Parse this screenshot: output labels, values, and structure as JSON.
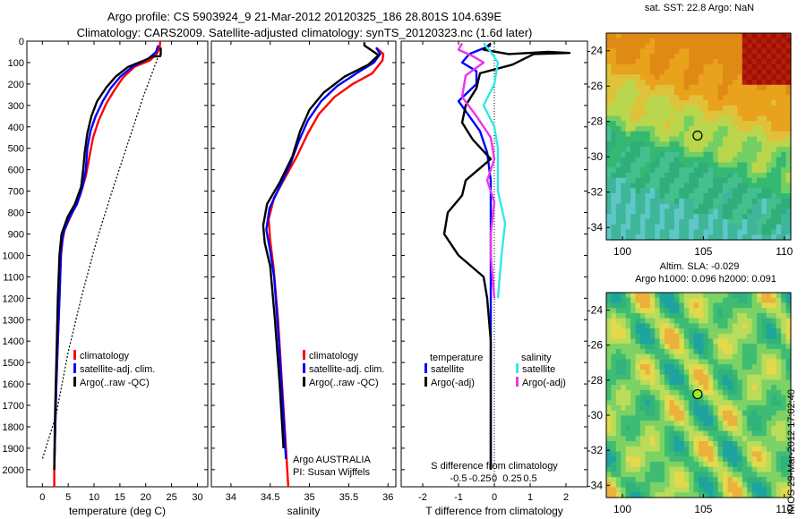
{
  "header": {
    "line1": "Argo profile: CS 5903924_9 21-Mar-2012 20120325_186 28.801S 104.639E",
    "line2": "Climatology: CARS2009. Satellite-adjusted climatology: synTS_20120323.nc (1.6d later)"
  },
  "colors": {
    "climatology": "#ff0000",
    "satellite": "#0000ff",
    "argo": "#000000",
    "sal_satellite": "#33e8e8",
    "sal_argo": "#ee33ee"
  },
  "chart_data": [
    {
      "id": "temperature",
      "type": "line",
      "xlabel": "temperature (deg C)",
      "ylabel": "",
      "xlim": [
        -3,
        32
      ],
      "ylim": [
        2080,
        0
      ],
      "xticks": [
        "0",
        "5",
        "10",
        "15",
        "20",
        "25",
        "30"
      ],
      "xtick_values": [
        0,
        5,
        10,
        15,
        20,
        25,
        30
      ],
      "yticks": [
        "0",
        "100",
        "200",
        "300",
        "400",
        "500",
        "600",
        "700",
        "800",
        "900",
        "1000",
        "1100",
        "1200",
        "1300",
        "1400",
        "1500",
        "1600",
        "1700",
        "1800",
        "1900",
        "2000"
      ],
      "ytick_values": [
        0,
        100,
        200,
        300,
        400,
        500,
        600,
        700,
        800,
        900,
        1000,
        1100,
        1200,
        1300,
        1400,
        1500,
        1600,
        1700,
        1800,
        1900,
        2000
      ],
      "legend": [
        "climatology",
        "satellite-adj. clim.",
        "Argo(..raw -QC)"
      ],
      "series": [
        {
          "name": "climatology",
          "color": "#ff0000",
          "dash": "",
          "points": [
            [
              22.8,
              0
            ],
            [
              22.7,
              30
            ],
            [
              22.1,
              60
            ],
            [
              20.8,
              90
            ],
            [
              17.8,
              120
            ],
            [
              15.6,
              170
            ],
            [
              13.9,
              230
            ],
            [
              12.4,
              290
            ],
            [
              10.9,
              370
            ],
            [
              9.8,
              450
            ],
            [
              9.1,
              540
            ],
            [
              8.4,
              630
            ],
            [
              7.3,
              720
            ],
            [
              5.8,
              800
            ],
            [
              4.3,
              880
            ],
            [
              3.9,
              930
            ],
            [
              3.6,
              1000
            ],
            [
              3.3,
              1200
            ],
            [
              3.0,
              1400
            ],
            [
              2.7,
              1600
            ],
            [
              2.5,
              1800
            ],
            [
              2.3,
              2000
            ],
            [
              2.3,
              2080
            ]
          ]
        },
        {
          "name": "satellite-adj. clim.",
          "color": "#0000ff",
          "dash": "",
          "points": [
            [
              22.4,
              20
            ],
            [
              22.0,
              50
            ],
            [
              20.6,
              80
            ],
            [
              17.4,
              120
            ],
            [
              15.1,
              165
            ],
            [
              13.2,
              220
            ],
            [
              11.7,
              280
            ],
            [
              10.3,
              350
            ],
            [
              9.3,
              420
            ],
            [
              8.7,
              500
            ],
            [
              8.4,
              600
            ],
            [
              7.8,
              680
            ],
            [
              6.7,
              760
            ],
            [
              5.1,
              830
            ],
            [
              4.0,
              900
            ],
            [
              3.6,
              980
            ],
            [
              3.3,
              1200
            ],
            [
              3.0,
              1400
            ],
            [
              2.7,
              1600
            ],
            [
              2.5,
              1800
            ],
            [
              2.3,
              2000
            ]
          ]
        },
        {
          "name": "Argo(..raw -QC)",
          "color": "#000000",
          "dash": "",
          "points": [
            [
              22.9,
              30
            ],
            [
              22.9,
              60
            ],
            [
              22.8,
              70
            ],
            [
              21.2,
              72
            ],
            [
              20.2,
              85
            ],
            [
              16.6,
              120
            ],
            [
              14.2,
              165
            ],
            [
              12.4,
              215
            ],
            [
              10.6,
              280
            ],
            [
              9.5,
              350
            ],
            [
              8.7,
              430
            ],
            [
              8.2,
              520
            ],
            [
              7.9,
              600
            ],
            [
              7.5,
              680
            ],
            [
              6.3,
              760
            ],
            [
              4.9,
              820
            ],
            [
              3.7,
              900
            ],
            [
              3.3,
              1000
            ],
            [
              3.0,
              1200
            ],
            [
              2.8,
              1400
            ],
            [
              2.6,
              1600
            ],
            [
              2.4,
              1800
            ],
            [
              2.3,
              2000
            ]
          ]
        },
        {
          "name": "",
          "color": "#000000",
          "dash": "2,2",
          "points": [
            [
              22.3,
              80
            ],
            [
              19.5,
              260
            ],
            [
              16.5,
              480
            ],
            [
              13.5,
              700
            ],
            [
              10.5,
              930
            ],
            [
              7.5,
              1200
            ],
            [
              5.0,
              1450
            ],
            [
              2.6,
              1750
            ],
            [
              0.0,
              1950
            ]
          ]
        }
      ]
    },
    {
      "id": "salinity",
      "type": "line",
      "xlabel": "salinity",
      "ylabel": "",
      "xlim": [
        33.75,
        36.1
      ],
      "ylim": [
        2080,
        0
      ],
      "xticks": [
        "34",
        "34.5",
        "35",
        "35.5",
        "36"
      ],
      "xtick_values": [
        34,
        34.5,
        35,
        35.5,
        36
      ],
      "legend": [
        "climatology",
        "satellite-adj. clim.",
        "Argo(..raw -QC)"
      ],
      "annotations": [
        "Argo AUSTRALIA",
        "PI: Susan Wijffels"
      ],
      "series": [
        {
          "name": "climatology",
          "color": "#ff0000",
          "dash": "",
          "points": [
            [
              35.85,
              30
            ],
            [
              35.94,
              60
            ],
            [
              35.93,
              90
            ],
            [
              35.8,
              150
            ],
            [
              35.55,
              200
            ],
            [
              35.32,
              260
            ],
            [
              35.12,
              340
            ],
            [
              34.98,
              430
            ],
            [
              34.85,
              530
            ],
            [
              34.7,
              630
            ],
            [
              34.55,
              730
            ],
            [
              34.48,
              830
            ],
            [
              34.5,
              930
            ],
            [
              34.54,
              1050
            ],
            [
              34.6,
              1300
            ],
            [
              34.65,
              1600
            ],
            [
              34.7,
              1900
            ],
            [
              34.73,
              2080
            ]
          ]
        },
        {
          "name": "satellite-adj. clim.",
          "color": "#0000ff",
          "dash": "",
          "points": [
            [
              35.85,
              30
            ],
            [
              35.9,
              60
            ],
            [
              35.82,
              100
            ],
            [
              35.6,
              150
            ],
            [
              35.35,
              210
            ],
            [
              35.15,
              280
            ],
            [
              34.98,
              370
            ],
            [
              34.86,
              470
            ],
            [
              34.76,
              570
            ],
            [
              34.62,
              680
            ],
            [
              34.49,
              780
            ],
            [
              34.45,
              880
            ],
            [
              34.5,
              980
            ],
            [
              34.55,
              1100
            ],
            [
              34.61,
              1400
            ],
            [
              34.66,
              1700
            ],
            [
              34.7,
              1950
            ]
          ]
        },
        {
          "name": "Argo(..raw -QC)",
          "color": "#000000",
          "dash": "",
          "points": [
            [
              35.7,
              5
            ],
            [
              35.7,
              20
            ],
            [
              35.78,
              40
            ],
            [
              35.88,
              65
            ],
            [
              35.75,
              110
            ],
            [
              35.45,
              165
            ],
            [
              35.18,
              240
            ],
            [
              35.0,
              320
            ],
            [
              34.88,
              420
            ],
            [
              34.78,
              540
            ],
            [
              34.62,
              660
            ],
            [
              34.46,
              760
            ],
            [
              34.41,
              860
            ],
            [
              34.43,
              940
            ],
            [
              34.5,
              1050
            ],
            [
              34.56,
              1300
            ],
            [
              34.62,
              1600
            ],
            [
              34.67,
              1900
            ]
          ]
        }
      ]
    },
    {
      "id": "difference",
      "type": "line",
      "xlabel": "T difference from climatology",
      "xlabel_top": "S difference from climatology",
      "xlim": [
        -2.6,
        2.6
      ],
      "ylim": [
        2080,
        0
      ],
      "xticks": [
        "-2",
        "-1",
        "0",
        "1",
        "2"
      ],
      "xtick_values": [
        -2,
        -1,
        0,
        1,
        2
      ],
      "xticks_top": [
        "-0.5",
        "-0.25",
        "0",
        "0.25",
        "0.5"
      ],
      "legend_title_left": "temperature",
      "legend_title_right": "salinity",
      "legend": [
        "satellite",
        "Argo(-adj)",
        "satellite",
        "Argo(-adj)"
      ],
      "series": [
        {
          "name": "satellite",
          "color": "#0000ff",
          "dash": "",
          "points": [
            [
              -0.1,
              20
            ],
            [
              -0.7,
              60
            ],
            [
              -0.9,
              100
            ],
            [
              -0.5,
              140
            ],
            [
              -0.5,
              200
            ],
            [
              -1.0,
              280
            ],
            [
              -0.7,
              350
            ],
            [
              -0.4,
              420
            ],
            [
              -0.2,
              520
            ],
            [
              -0.1,
              650
            ],
            [
              -0.1,
              900
            ],
            [
              -0.1,
              1200
            ],
            [
              -0.1,
              1600
            ],
            [
              -0.1,
              2000
            ]
          ]
        },
        {
          "name": "Argo(-adj)",
          "color": "#000000",
          "dash": "",
          "points": [
            [
              -0.1,
              10
            ],
            [
              -0.3,
              40
            ],
            [
              0.4,
              60
            ],
            [
              1.5,
              50
            ],
            [
              2.1,
              55
            ],
            [
              1.1,
              60
            ],
            [
              0.5,
              110
            ],
            [
              -0.4,
              150
            ],
            [
              -0.5,
              220
            ],
            [
              -0.8,
              300
            ],
            [
              -0.9,
              380
            ],
            [
              -0.6,
              460
            ],
            [
              -0.1,
              550
            ],
            [
              -0.8,
              650
            ],
            [
              -0.9,
              720
            ],
            [
              -1.3,
              800
            ],
            [
              -1.4,
              900
            ],
            [
              -1.0,
              1000
            ],
            [
              -0.3,
              1100
            ],
            [
              -0.2,
              1200
            ],
            [
              -0.1,
              1400
            ],
            [
              -0.1,
              2000
            ]
          ]
        },
        {
          "name": "satellite",
          "color": "#33e8e8",
          "dash": "",
          "points": [
            [
              -0.3,
              10
            ],
            [
              -0.1,
              50
            ],
            [
              0.1,
              100
            ],
            [
              0.0,
              200
            ],
            [
              -0.3,
              300
            ],
            [
              0.0,
              400
            ],
            [
              0.1,
              500
            ],
            [
              0.1,
              700
            ],
            [
              0.3,
              850
            ],
            [
              0.2,
              1000
            ],
            [
              0.1,
              1200
            ]
          ]
        },
        {
          "name": "Argo(-adj)",
          "color": "#ee33ee",
          "dash": "",
          "points": [
            [
              -0.9,
              10
            ],
            [
              -1.0,
              40
            ],
            [
              -0.6,
              70
            ],
            [
              -0.3,
              100
            ],
            [
              -0.8,
              160
            ],
            [
              -0.9,
              260
            ],
            [
              -0.5,
              350
            ],
            [
              -0.1,
              450
            ],
            [
              0.0,
              550
            ],
            [
              -0.2,
              650
            ],
            [
              0.0,
              750
            ],
            [
              -0.1,
              900
            ],
            [
              -0.1,
              1000
            ],
            [
              0.0,
              1200
            ]
          ]
        }
      ]
    }
  ],
  "maps": {
    "sst": {
      "title": "sat. SST: 22.8 Argo: NaN",
      "xticks": [
        "100",
        "105",
        "110"
      ],
      "yticks": [
        "-24",
        "-26",
        "-28",
        "-30",
        "-32",
        "-34"
      ],
      "argo_lon": 104.639,
      "argo_lat": -28.801
    },
    "sla": {
      "title1": "Altim. SLA: -0.029",
      "title2": "Argo h1000: 0.096 h2000: 0.091",
      "xticks": [
        "100",
        "105",
        "110"
      ],
      "yticks": [
        "-24",
        "-26",
        "-28",
        "-30",
        "-32",
        "-34"
      ],
      "argo_lon": 104.639,
      "argo_lat": -28.801
    }
  },
  "stamp": "IMOS 29-Mar-2012 17:02:40"
}
